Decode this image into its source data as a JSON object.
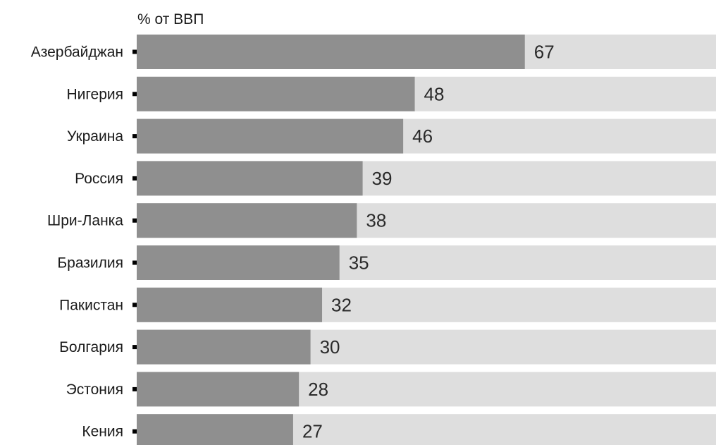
{
  "chart_data": {
    "type": "bar",
    "orientation": "horizontal",
    "unit_label": "% от ВВП",
    "categories": [
      "Азербайджан",
      "Нигерия",
      "Украина",
      "Россия",
      "Шри-Ланка",
      "Бразилия",
      "Пакистан",
      "Болгария",
      "Эстония",
      "Кения"
    ],
    "values": [
      67,
      48,
      46,
      39,
      38,
      35,
      32,
      30,
      28,
      27
    ],
    "xlim": [
      0,
      100
    ],
    "grid": false,
    "legend": "none"
  },
  "colors": {
    "bar": "#8f8f8f",
    "track": "#dedede",
    "tick": "#000000",
    "text": "#1a1a1a"
  }
}
